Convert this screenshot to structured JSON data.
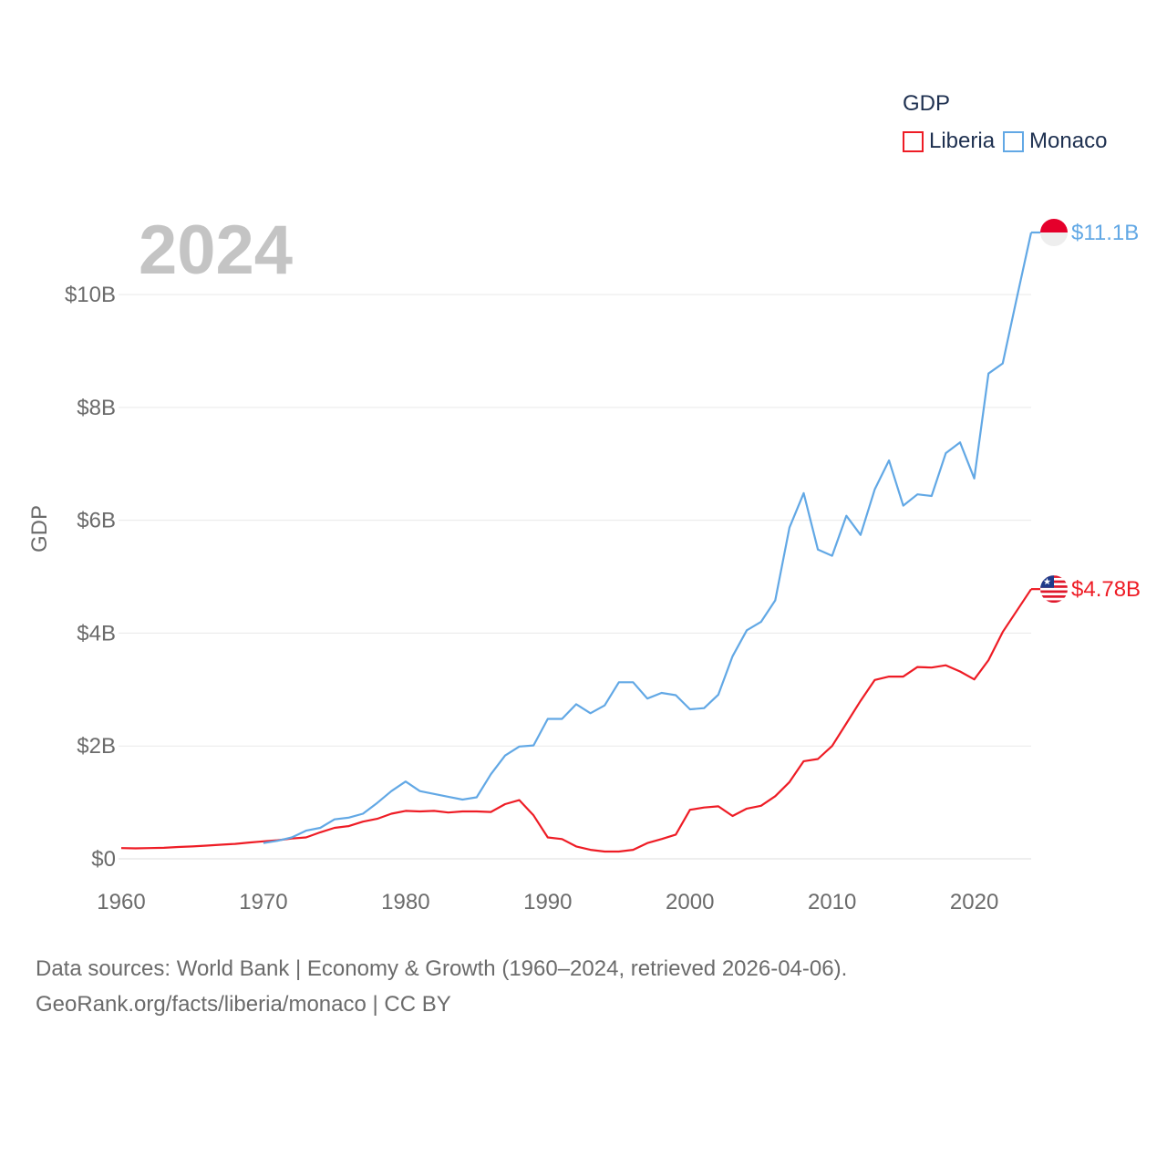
{
  "legend": {
    "title": "GDP",
    "items": [
      {
        "name": "Liberia",
        "color": "#ee1c25"
      },
      {
        "name": "Monaco",
        "color": "#62a8e5"
      }
    ]
  },
  "year_label": "2024",
  "source": {
    "line1": "Data sources: World Bank | Economy & Growth (1960–2024, retrieved 2026-04-06).",
    "line2": "GeoRank.org/facts/liberia/monaco | CC BY"
  },
  "chart_data": {
    "type": "line",
    "title": "",
    "xlabel": "",
    "ylabel": "GDP",
    "xlim": [
      1960,
      2024
    ],
    "ylim": [
      0,
      11.1
    ],
    "y_unit": "billion USD",
    "x_ticks": [
      "1960",
      "1970",
      "1980",
      "1990",
      "2000",
      "2010",
      "2020"
    ],
    "x_tick_values": [
      1960,
      1970,
      1980,
      1990,
      2000,
      2010,
      2020
    ],
    "y_ticks": [
      "$0",
      "$2B",
      "$4B",
      "$6B",
      "$8B",
      "$10B"
    ],
    "y_tick_values": [
      0,
      2,
      4,
      6,
      8,
      10
    ],
    "grid": true,
    "series": [
      {
        "name": "Liberia",
        "color": "#ee1c25",
        "end_label": "$4.78B",
        "flag": "liberia-flag",
        "x": [
          1960,
          1961,
          1962,
          1963,
          1964,
          1965,
          1966,
          1967,
          1968,
          1969,
          1970,
          1971,
          1972,
          1973,
          1974,
          1975,
          1976,
          1977,
          1978,
          1979,
          1980,
          1981,
          1982,
          1983,
          1984,
          1985,
          1986,
          1987,
          1988,
          1989,
          1990,
          1991,
          1992,
          1993,
          1994,
          1995,
          1996,
          1997,
          1998,
          1999,
          2000,
          2001,
          2002,
          2003,
          2004,
          2005,
          2006,
          2007,
          2008,
          2009,
          2010,
          2011,
          2012,
          2013,
          2014,
          2015,
          2016,
          2017,
          2018,
          2019,
          2020,
          2021,
          2022,
          2023,
          2024
        ],
        "values": [
          0.19,
          0.185,
          0.19,
          0.195,
          0.21,
          0.22,
          0.235,
          0.25,
          0.265,
          0.29,
          0.31,
          0.33,
          0.36,
          0.38,
          0.47,
          0.55,
          0.58,
          0.66,
          0.71,
          0.8,
          0.85,
          0.84,
          0.85,
          0.82,
          0.84,
          0.84,
          0.83,
          0.97,
          1.04,
          0.77,
          0.38,
          0.35,
          0.22,
          0.16,
          0.13,
          0.13,
          0.16,
          0.28,
          0.35,
          0.43,
          0.87,
          0.91,
          0.93,
          0.76,
          0.89,
          0.94,
          1.11,
          1.36,
          1.73,
          1.77,
          2.0,
          2.4,
          2.8,
          3.17,
          3.23,
          3.23,
          3.4,
          3.39,
          3.43,
          3.32,
          3.18,
          3.52,
          4.02,
          4.4,
          4.78
        ]
      },
      {
        "name": "Monaco",
        "color": "#62a8e5",
        "end_label": "$11.1B",
        "flag": "monaco-flag",
        "x": [
          1970,
          1971,
          1972,
          1973,
          1974,
          1975,
          1976,
          1977,
          1978,
          1979,
          1980,
          1981,
          1982,
          1983,
          1984,
          1985,
          1986,
          1987,
          1988,
          1989,
          1990,
          1991,
          1992,
          1993,
          1994,
          1995,
          1996,
          1997,
          1998,
          1999,
          2000,
          2001,
          2002,
          2003,
          2004,
          2005,
          2006,
          2007,
          2008,
          2009,
          2010,
          2011,
          2012,
          2013,
          2014,
          2015,
          2016,
          2017,
          2018,
          2019,
          2020,
          2021,
          2022,
          2023,
          2024
        ],
        "values": [
          0.28,
          0.32,
          0.38,
          0.5,
          0.55,
          0.7,
          0.73,
          0.8,
          0.99,
          1.2,
          1.37,
          1.2,
          1.15,
          1.1,
          1.05,
          1.09,
          1.5,
          1.83,
          1.99,
          2.01,
          2.48,
          2.48,
          2.74,
          2.58,
          2.72,
          3.13,
          3.13,
          2.84,
          2.94,
          2.9,
          2.65,
          2.67,
          2.91,
          3.59,
          4.05,
          4.2,
          4.58,
          5.87,
          6.48,
          5.48,
          5.37,
          6.08,
          5.74,
          6.55,
          7.06,
          6.26,
          6.46,
          6.43,
          7.19,
          7.38,
          6.74,
          8.6,
          8.78,
          9.95,
          11.1
        ]
      }
    ]
  }
}
